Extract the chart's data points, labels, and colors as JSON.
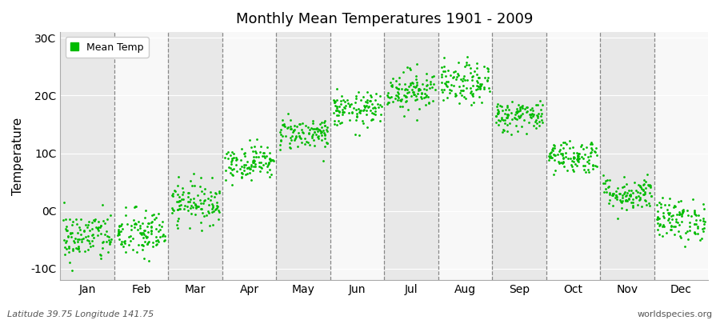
{
  "title": "Monthly Mean Temperatures 1901 - 2009",
  "ylabel": "Temperature",
  "yticks": [
    -10,
    0,
    10,
    20,
    30
  ],
  "ytick_labels": [
    "-10C",
    "0C",
    "10C",
    "20C",
    "30C"
  ],
  "ylim": [
    -12,
    31
  ],
  "figure_bg_color": "#ffffff",
  "plot_bg_color": "#f0f0f0",
  "stripe_color_odd": "#e8e8e8",
  "stripe_color_even": "#f8f8f8",
  "dot_color": "#00bb00",
  "dot_size": 4,
  "legend_label": "Mean Temp",
  "bottom_left_text": "Latitude 39.75 Longitude 141.75",
  "bottom_right_text": "worldspecies.org",
  "months": [
    "Jan",
    "Feb",
    "Mar",
    "Apr",
    "May",
    "Jun",
    "Jul",
    "Aug",
    "Sep",
    "Oct",
    "Nov",
    "Dec"
  ],
  "month_mean_temps": [
    -4.5,
    -4.0,
    1.5,
    8.5,
    13.5,
    17.5,
    21.0,
    22.0,
    16.5,
    9.5,
    3.0,
    -1.5
  ],
  "month_std_temps": [
    2.2,
    2.2,
    1.8,
    1.5,
    1.4,
    1.5,
    1.8,
    1.8,
    1.4,
    1.5,
    1.5,
    1.8
  ],
  "n_years": 109,
  "seed": 42
}
